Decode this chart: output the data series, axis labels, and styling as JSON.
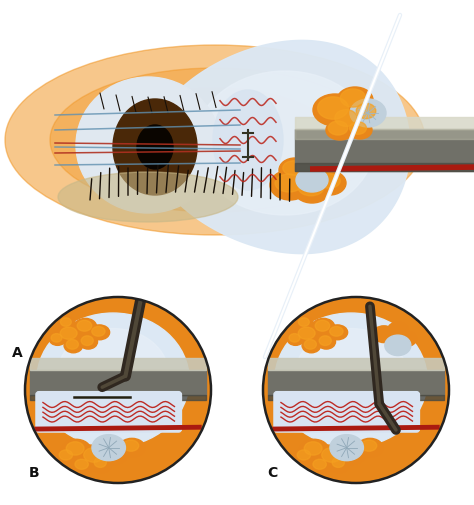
{
  "bg_color": "#ffffff",
  "label_A": "A",
  "label_B": "B",
  "label_C": "C",
  "label_fontsize": 10,
  "label_color": "#111111",
  "colors": {
    "orange_bg": "#E8871A",
    "orange_fat": "#E8861A",
    "orange_fat_inner": "#F5A020",
    "white_tissue": "#dce8f2",
    "white_tissue2": "#c8d8e8",
    "gray_retractor": "#707068",
    "gray_retractor_light": "#a0a090",
    "gray_retractor_dark": "#4a4a42",
    "red_vessel": "#aa1a10",
    "blue_suture": "#6090b0",
    "red_suture": "#b03020",
    "dark_instrument": "#302820",
    "instrument_mid": "#504838",
    "crystal": "#c0d0dc",
    "needle": "#d0dce8",
    "eyelash": "#181008",
    "iris": "#4a2808",
    "pupil": "#0a0500"
  }
}
